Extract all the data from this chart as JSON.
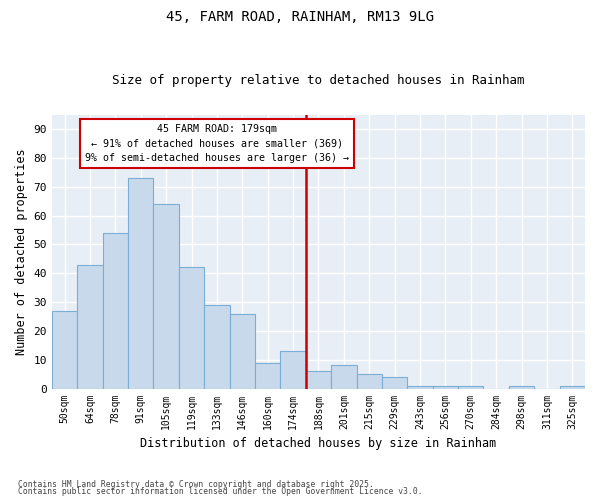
{
  "title1": "45, FARM ROAD, RAINHAM, RM13 9LG",
  "title2": "Size of property relative to detached houses in Rainham",
  "xlabel": "Distribution of detached houses by size in Rainham",
  "ylabel": "Number of detached properties",
  "categories": [
    "50sqm",
    "64sqm",
    "78sqm",
    "91sqm",
    "105sqm",
    "119sqm",
    "133sqm",
    "146sqm",
    "160sqm",
    "174sqm",
    "188sqm",
    "201sqm",
    "215sqm",
    "229sqm",
    "243sqm",
    "256sqm",
    "270sqm",
    "284sqm",
    "298sqm",
    "311sqm",
    "325sqm"
  ],
  "values": [
    27,
    43,
    54,
    73,
    64,
    42,
    29,
    26,
    9,
    13,
    6,
    8,
    5,
    4,
    1,
    1,
    1,
    0,
    1,
    0,
    1
  ],
  "bar_color": "#c8d9ec",
  "bar_edge_color": "#7aaed4",
  "property_line_label": "45 FARM ROAD: 179sqm",
  "annotation_line1": "← 91% of detached houses are smaller (369)",
  "annotation_line2": "9% of semi-detached houses are larger (36) →",
  "annotation_box_color": "#ffffff",
  "annotation_box_edge": "#cc0000",
  "vline_color": "#cc0000",
  "ylim": [
    0,
    95
  ],
  "yticks": [
    0,
    10,
    20,
    30,
    40,
    50,
    60,
    70,
    80,
    90
  ],
  "footer1": "Contains HM Land Registry data © Crown copyright and database right 2025.",
  "footer2": "Contains public sector information licensed under the Open Government Licence v3.0.",
  "fig_bg_color": "#ffffff",
  "plot_bg_color": "#e8eef5"
}
